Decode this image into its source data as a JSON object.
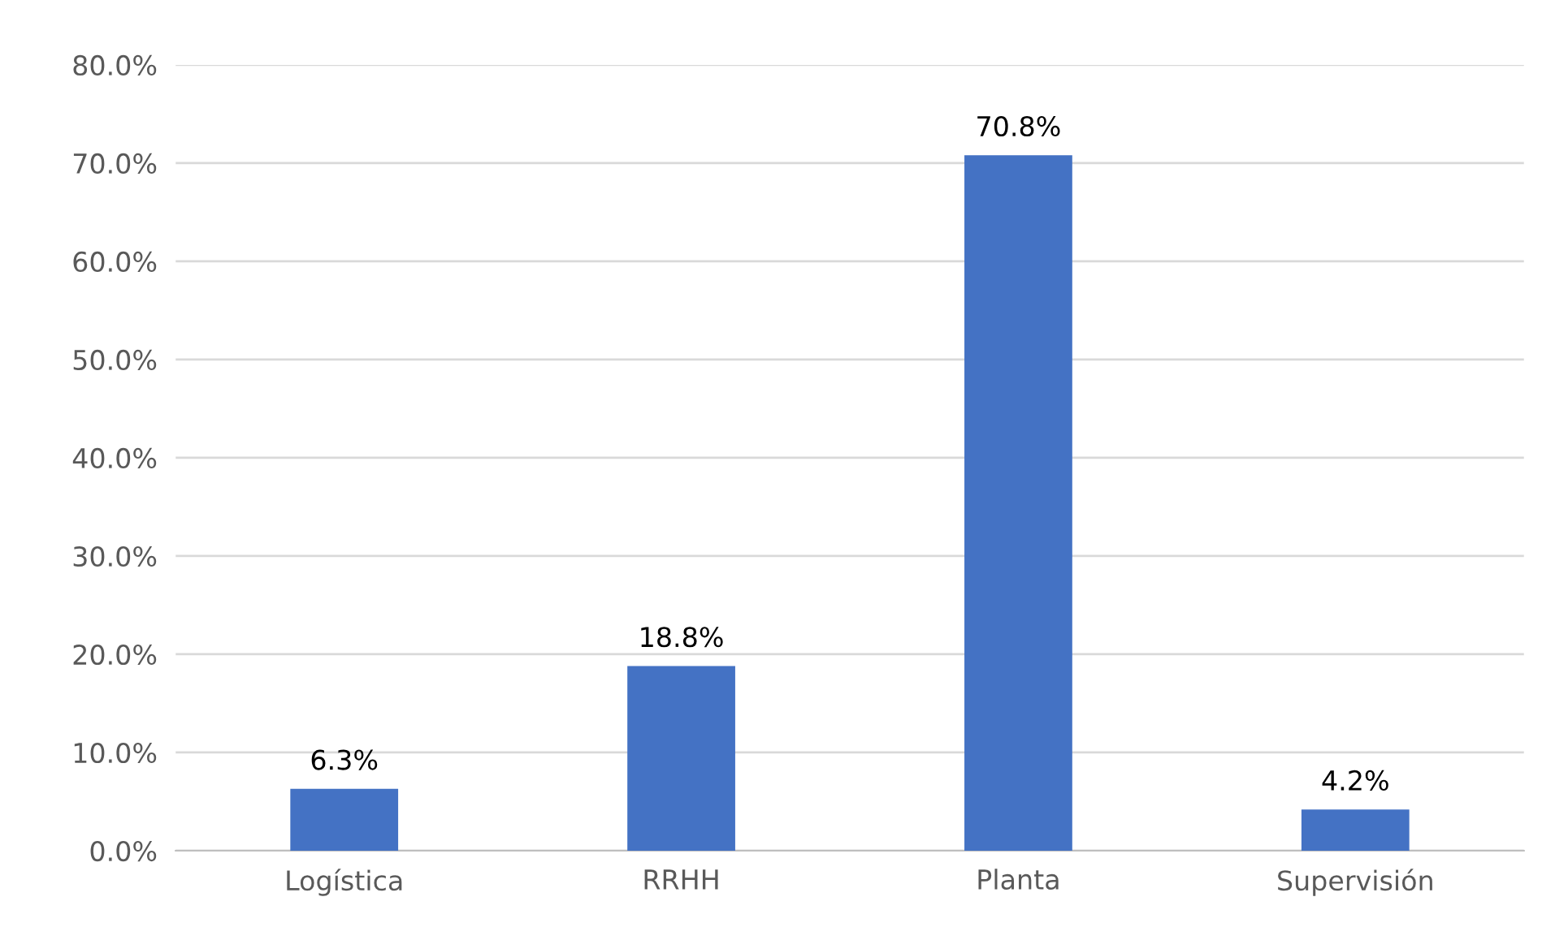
{
  "chart_data": {
    "type": "bar",
    "categories": [
      "Logística",
      "RRHH",
      "Planta",
      "Supervisión"
    ],
    "values": [
      6.3,
      18.8,
      70.8,
      4.2
    ],
    "value_labels": [
      "6.3%",
      "18.8%",
      "70.8%",
      "4.2%"
    ],
    "color": "#4472c4",
    "ylim": [
      0,
      80
    ],
    "yticks": [
      {
        "value": 0,
        "label": "0.0%"
      },
      {
        "value": 10,
        "label": "10.0%"
      },
      {
        "value": 20,
        "label": "20.0%"
      },
      {
        "value": 30,
        "label": "30.0%"
      },
      {
        "value": 40,
        "label": "40.0%"
      },
      {
        "value": 50,
        "label": "50.0%"
      },
      {
        "value": 60,
        "label": "60.0%"
      },
      {
        "value": 70,
        "label": "70.0%"
      },
      {
        "value": 80,
        "label": "80.0%"
      }
    ],
    "grid": "y",
    "legend": false
  }
}
